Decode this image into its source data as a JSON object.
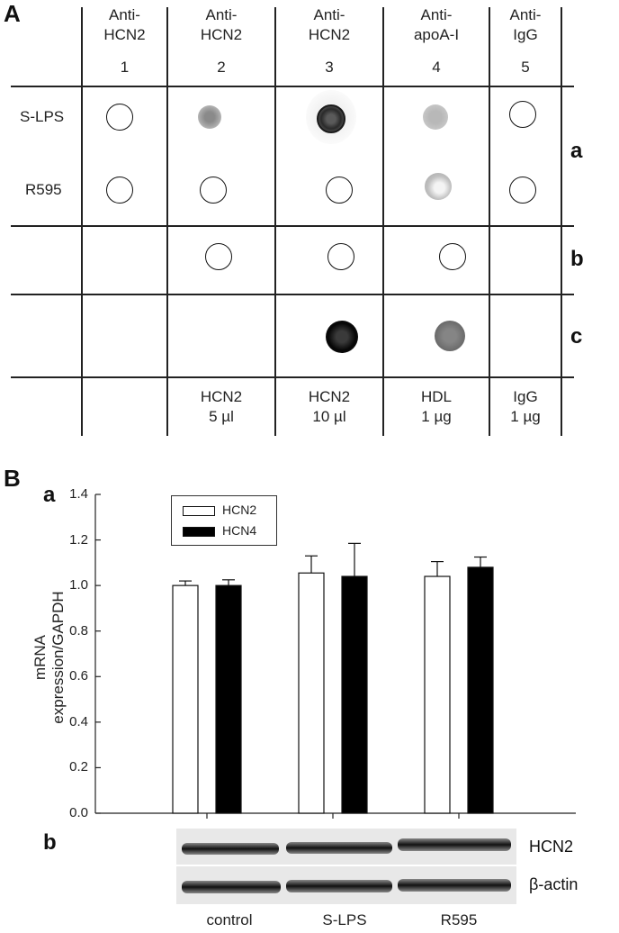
{
  "panelA": {
    "letter": "A",
    "columns": [
      {
        "head1": "Anti-",
        "head2": "HCN2",
        "num": "1",
        "foot1": "",
        "foot2": ""
      },
      {
        "head1": "Anti-",
        "head2": "HCN2",
        "num": "2",
        "foot1": "HCN2",
        "foot2": "5 µl"
      },
      {
        "head1": "Anti-",
        "head2": "HCN2",
        "num": "3",
        "foot1": "HCN2",
        "foot2": "10 µl"
      },
      {
        "head1": "Anti-",
        "head2": "apoA-I",
        "num": "4",
        "foot1": "HDL",
        "foot2": "1 µg"
      },
      {
        "head1": "Anti-",
        "head2": "IgG",
        "num": "5",
        "foot1": "IgG",
        "foot2": "1 µg"
      }
    ],
    "row_labels": [
      "S-LPS",
      "R595"
    ],
    "section_labels": [
      "a",
      "b",
      "c"
    ]
  },
  "panelB": {
    "letter": "B",
    "sub_a": "a",
    "sub_b": "b",
    "blot_labels": [
      "HCN2",
      "β-actin"
    ]
  },
  "chart_data": {
    "type": "bar",
    "categories": [
      "control",
      "S-LPS",
      "R595"
    ],
    "series": [
      {
        "name": "HCN2",
        "color": "#ffffff",
        "values": [
          1.0,
          1.055,
          1.04
        ],
        "errors": [
          0.02,
          0.075,
          0.065
        ]
      },
      {
        "name": "HCN4",
        "color": "#000000",
        "values": [
          1.0,
          1.04,
          1.08
        ],
        "errors": [
          0.025,
          0.145,
          0.045
        ]
      }
    ],
    "ylabel": "mRNA expression/GAPDH",
    "xlabel": "",
    "ylim": [
      0,
      1.4
    ],
    "yticks": [
      "0.0",
      "0.2",
      "0.4",
      "0.6",
      "0.8",
      "1.0",
      "1.2",
      "1.4"
    ],
    "legend_position": "top-left",
    "grid": false
  }
}
